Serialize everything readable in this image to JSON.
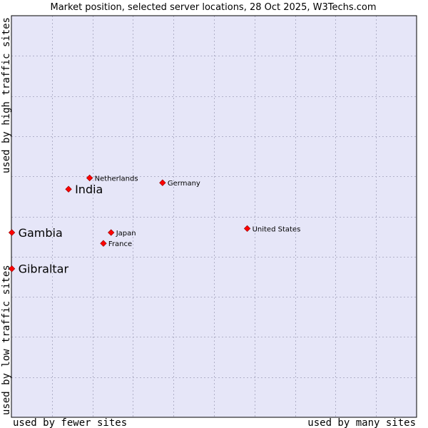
{
  "chart_data": {
    "type": "scatter",
    "title": "Market position, selected server locations, 28 Oct 2025, W3Techs.com",
    "xlabel_left": "used by fewer sites",
    "xlabel_right": "used by many sites",
    "ylabel_bottom": "used by low traffic sites",
    "ylabel_top": "used by high traffic sites",
    "xlim": [
      0,
      100
    ],
    "ylim": [
      0,
      100
    ],
    "grid": true,
    "colors": {
      "plot_background": "#e6e6f8",
      "grid": "#b0b0c8",
      "frame": "#000000",
      "marker": "#ff0000",
      "marker_stroke": "#8b0000"
    },
    "points": [
      {
        "name": "Netherlands",
        "x": 19.3,
        "y": 59.6,
        "emphasis": false
      },
      {
        "name": "India",
        "x": 14.1,
        "y": 56.8,
        "emphasis": true
      },
      {
        "name": "Germany",
        "x": 37.3,
        "y": 58.4,
        "emphasis": false
      },
      {
        "name": "United States",
        "x": 58.2,
        "y": 47.0,
        "emphasis": false
      },
      {
        "name": "Gambia",
        "x": 0.1,
        "y": 46.0,
        "emphasis": true
      },
      {
        "name": "Japan",
        "x": 24.6,
        "y": 46.0,
        "emphasis": false
      },
      {
        "name": "France",
        "x": 22.7,
        "y": 43.3,
        "emphasis": false
      },
      {
        "name": "Gibraltar",
        "x": 0.1,
        "y": 37.0,
        "emphasis": true
      }
    ]
  }
}
